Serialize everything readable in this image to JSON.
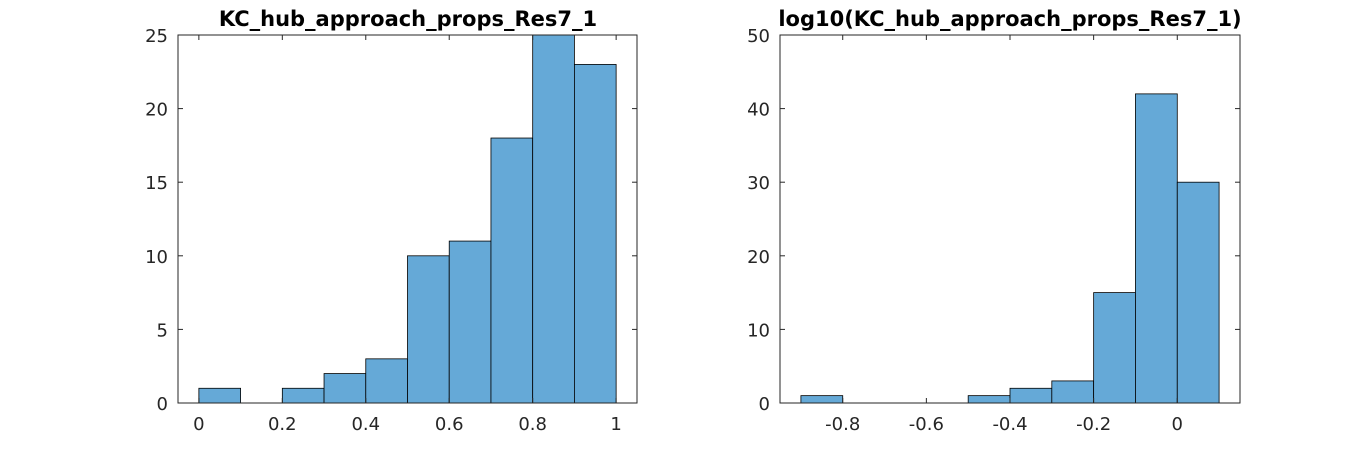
{
  "colors": {
    "bar_fill": "#65a9d7",
    "bar_edge": "#000000",
    "axis": "#262626"
  },
  "chart_data": [
    {
      "type": "bar",
      "title": "KC_hub_approach_props_Res7_1",
      "xlabel": "",
      "ylabel": "",
      "bin_edges": [
        0,
        0.1,
        0.2,
        0.3,
        0.4,
        0.5,
        0.6,
        0.7,
        0.8,
        0.9,
        1.0
      ],
      "values": [
        1,
        0,
        1,
        2,
        3,
        10,
        11,
        18,
        25,
        23
      ],
      "xlim": [
        -0.05,
        1.05
      ],
      "ylim": [
        0,
        25
      ],
      "xticks": [
        0,
        0.2,
        0.4,
        0.6,
        0.8,
        1
      ],
      "xtick_labels": [
        "0",
        "0.2",
        "0.4",
        "0.6",
        "0.8",
        "1"
      ],
      "yticks": [
        0,
        5,
        10,
        15,
        20,
        25
      ],
      "ytick_labels": [
        "0",
        "5",
        "10",
        "15",
        "20",
        "25"
      ],
      "grid": false
    },
    {
      "type": "bar",
      "title": "log10(KC_hub_approach_props_Res7_1)",
      "xlabel": "",
      "ylabel": "",
      "bin_edges": [
        -0.9,
        -0.8,
        -0.7,
        -0.6,
        -0.5,
        -0.4,
        -0.3,
        -0.2,
        -0.1,
        0.0,
        0.1
      ],
      "values": [
        1,
        0,
        0,
        0,
        1,
        2,
        3,
        15,
        42,
        30
      ],
      "xlim": [
        -0.95,
        0.15
      ],
      "ylim": [
        0,
        50
      ],
      "xticks": [
        -0.8,
        -0.6,
        -0.4,
        -0.2,
        0
      ],
      "xtick_labels": [
        "-0.8",
        "-0.6",
        "-0.4",
        "-0.2",
        "0"
      ],
      "yticks": [
        0,
        10,
        20,
        30,
        40,
        50
      ],
      "ytick_labels": [
        "0",
        "10",
        "20",
        "30",
        "40",
        "50"
      ],
      "grid": false
    }
  ]
}
